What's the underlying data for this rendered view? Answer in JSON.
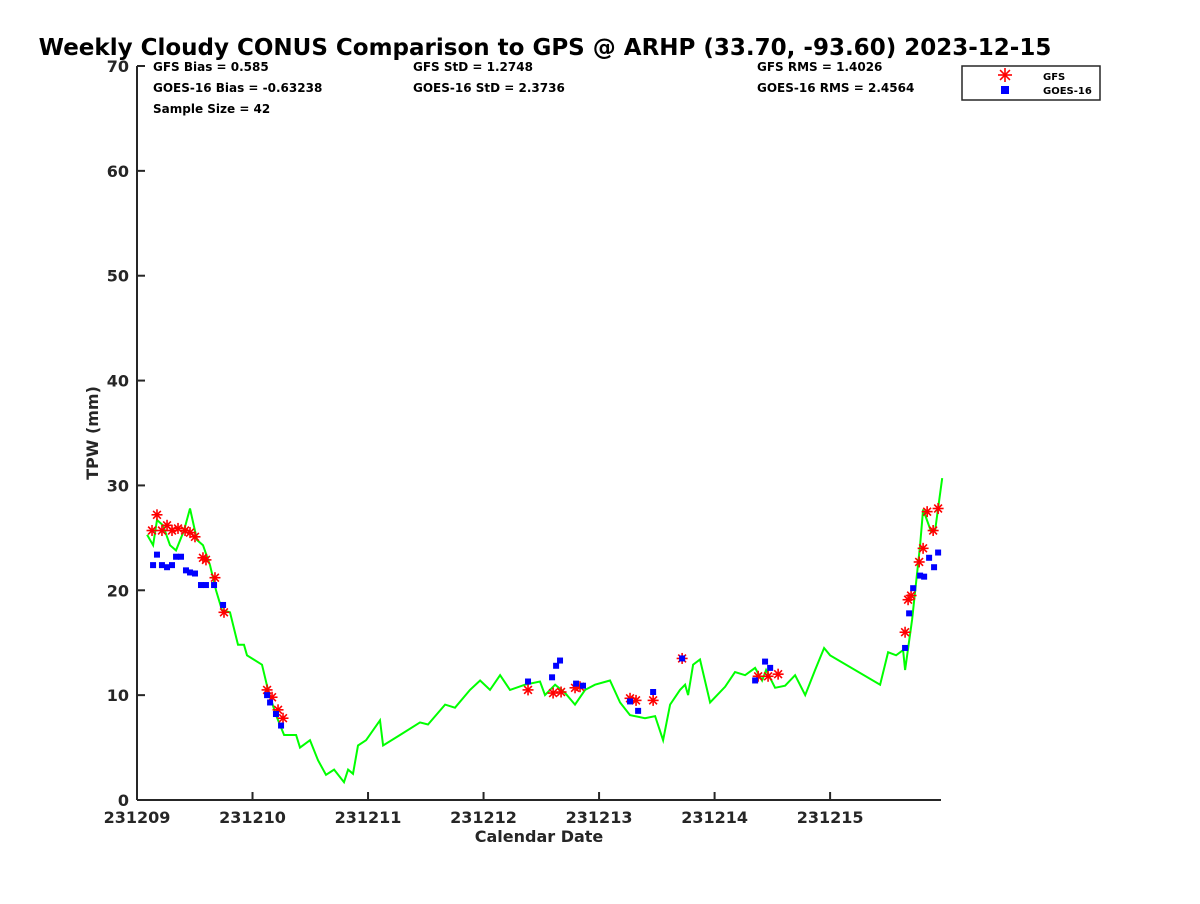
{
  "chart_data": {
    "type": "line",
    "title": "Weekly Cloudy CONUS Comparison to GPS @ ARHP (33.70, -93.60) 2023-12-15",
    "xlabel": "Calendar Date",
    "ylabel": "TPW (mm)",
    "x_unit": "days since 231209",
    "xlim": [
      0,
      6.96
    ],
    "ylim": [
      0,
      70
    ],
    "xticks": [
      0,
      1,
      2,
      3,
      4,
      5,
      6
    ],
    "xtick_labels": [
      "231209",
      "231210",
      "231211",
      "231212",
      "231213",
      "231214",
      "231215"
    ],
    "yticks": [
      0,
      10,
      20,
      30,
      40,
      50,
      60,
      70
    ],
    "ytick_labels": [
      "0",
      "10",
      "20",
      "30",
      "40",
      "50",
      "60",
      "70"
    ],
    "grid": false,
    "legend_position": "top-right-outside",
    "stats": {
      "gfs_bias": "GFS Bias = 0.585",
      "goes_bias": "GOES-16 Bias = -0.63238",
      "sample_size": "Sample Size = 42",
      "gfs_std": "GFS StD = 1.2748",
      "goes_std": "GOES-16 StD = 2.3736",
      "gfs_rms": "GFS RMS = 1.4026",
      "goes_rms": "GOES-16 RMS = 2.4564"
    },
    "series": [
      {
        "name": "GPS",
        "marker": "line",
        "color": "#00ff00",
        "x": [
          0.087,
          0.139,
          0.173,
          0.225,
          0.286,
          0.338,
          0.407,
          0.459,
          0.519,
          0.571,
          0.632,
          0.684,
          0.736,
          0.805,
          0.874,
          0.926,
          0.952,
          1.082,
          1.134,
          1.203,
          1.273,
          1.377,
          1.411,
          1.498,
          1.567,
          1.636,
          1.706,
          1.792,
          1.827,
          1.87,
          1.913,
          1.983,
          2.104,
          2.13,
          2.277,
          2.45,
          2.519,
          2.667,
          2.753,
          2.883,
          2.97,
          3.056,
          3.143,
          3.229,
          3.359,
          3.489,
          3.532,
          3.619,
          3.706,
          3.792,
          3.879,
          3.965,
          4.095,
          4.182,
          4.268,
          4.398,
          4.485,
          4.554,
          4.615,
          4.701,
          4.745,
          4.771,
          4.814,
          4.874,
          4.961,
          5.091,
          5.177,
          5.264,
          5.351,
          5.411,
          5.446,
          5.524,
          5.61,
          5.697,
          5.784,
          5.87,
          5.948,
          6.0,
          6.433,
          6.502,
          6.571,
          6.632,
          6.649,
          6.71,
          6.779,
          6.805,
          6.874,
          6.909,
          6.97
        ],
        "y": [
          25.3,
          24.3,
          26.7,
          26.2,
          24.3,
          23.8,
          25.7,
          27.8,
          24.8,
          24.3,
          22.4,
          20.0,
          18.1,
          17.9,
          14.8,
          14.8,
          13.8,
          12.9,
          10.5,
          8.1,
          6.2,
          6.2,
          5.0,
          5.7,
          3.8,
          2.4,
          2.9,
          1.7,
          2.9,
          2.5,
          5.2,
          5.7,
          7.6,
          5.2,
          6.2,
          7.4,
          7.2,
          9.1,
          8.8,
          10.5,
          11.4,
          10.5,
          11.9,
          10.5,
          11.0,
          11.3,
          10.0,
          11.0,
          10.2,
          9.1,
          10.5,
          11.0,
          11.4,
          9.3,
          8.1,
          7.8,
          8.0,
          5.7,
          9.1,
          10.5,
          11.0,
          10.0,
          12.9,
          13.4,
          9.3,
          10.8,
          12.2,
          11.9,
          12.6,
          11.4,
          12.4,
          10.7,
          10.9,
          11.9,
          10.0,
          12.4,
          14.5,
          13.8,
          11.0,
          14.1,
          13.8,
          14.3,
          12.4,
          17.2,
          24.3,
          27.7,
          25.6,
          25.7,
          30.7
        ]
      },
      {
        "name": "GFS",
        "marker": "asterisk",
        "color": "#ff0000",
        "x": [
          0.13,
          0.173,
          0.216,
          0.26,
          0.303,
          0.355,
          0.416,
          0.459,
          0.502,
          0.571,
          0.597,
          0.675,
          0.753,
          1.126,
          1.169,
          1.221,
          1.264,
          3.385,
          3.602,
          3.671,
          3.792,
          3.835,
          4.268,
          4.32,
          4.468,
          4.719,
          5.377,
          5.463,
          5.55,
          6.649,
          6.675,
          6.701,
          6.771,
          6.805,
          6.84,
          6.892,
          6.935
        ],
        "y": [
          25.7,
          27.2,
          25.7,
          26.2,
          25.7,
          25.9,
          25.7,
          25.5,
          25.1,
          23.1,
          22.9,
          21.2,
          17.9,
          10.5,
          9.8,
          8.6,
          7.8,
          10.5,
          10.2,
          10.3,
          10.7,
          10.8,
          9.7,
          9.5,
          9.5,
          13.5,
          11.8,
          11.8,
          12.0,
          16.0,
          19.1,
          19.5,
          22.7,
          24.0,
          27.5,
          25.7,
          27.8
        ]
      },
      {
        "name": "GOES-16",
        "marker": "square",
        "color": "#0000ff",
        "x": [
          0.139,
          0.173,
          0.216,
          0.26,
          0.303,
          0.338,
          0.381,
          0.424,
          0.459,
          0.502,
          0.554,
          0.597,
          0.667,
          0.745,
          1.126,
          1.152,
          1.203,
          1.247,
          3.385,
          3.593,
          3.628,
          3.662,
          3.801,
          3.861,
          4.268,
          4.338,
          4.468,
          4.719,
          5.351,
          5.437,
          5.481,
          6.649,
          6.684,
          6.719,
          6.779,
          6.814,
          6.857,
          6.9,
          6.935
        ],
        "y": [
          22.4,
          23.4,
          22.4,
          22.2,
          22.4,
          23.2,
          23.2,
          21.9,
          21.7,
          21.6,
          20.5,
          20.5,
          20.5,
          18.6,
          10.0,
          9.3,
          8.2,
          7.1,
          11.3,
          11.7,
          12.8,
          13.3,
          11.1,
          10.9,
          9.4,
          8.5,
          10.3,
          13.5,
          11.4,
          13.2,
          12.6,
          14.5,
          17.8,
          20.2,
          21.4,
          21.3,
          23.1,
          22.2,
          23.6
        ]
      }
    ],
    "legend": [
      "GFS",
      "GOES-16"
    ]
  }
}
